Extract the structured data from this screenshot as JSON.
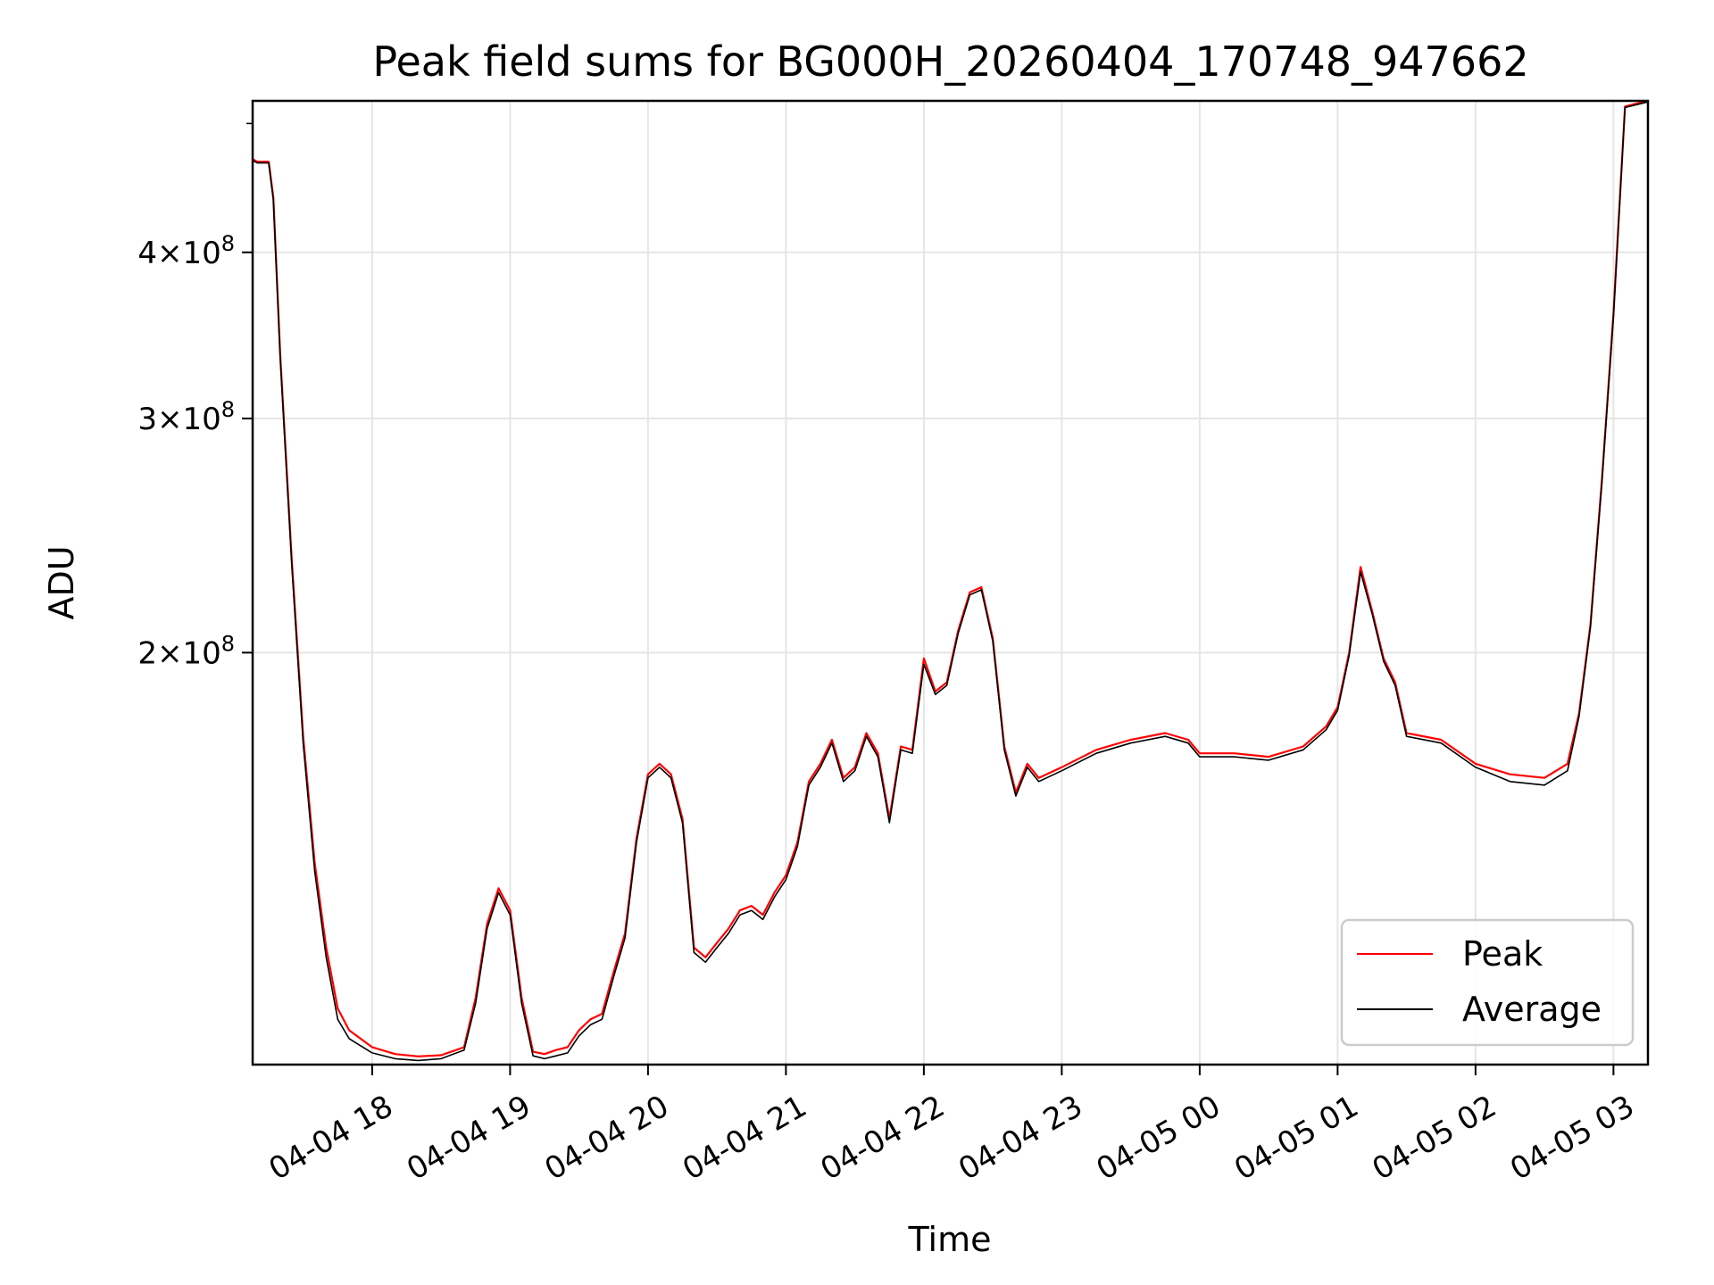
{
  "chart_data": {
    "type": "line",
    "title": "Peak field sums for BG000H_20260404_170748_947662",
    "xlabel": "Time",
    "ylabel": "ADU",
    "y_scale": "log",
    "grid": true,
    "legend_position": "lower-right",
    "x_range": [
      "2026-04-04 17:08",
      "2026-04-05 03:15"
    ],
    "y_range": [
      98000000,
      520000000
    ],
    "x_ticks": [
      {
        "value": "2026-04-04 18:00",
        "label": "04-04 18"
      },
      {
        "value": "2026-04-04 19:00",
        "label": "04-04 19"
      },
      {
        "value": "2026-04-04 20:00",
        "label": "04-04 20"
      },
      {
        "value": "2026-04-04 21:00",
        "label": "04-04 21"
      },
      {
        "value": "2026-04-04 22:00",
        "label": "04-04 22"
      },
      {
        "value": "2026-04-04 23:00",
        "label": "04-04 23"
      },
      {
        "value": "2026-04-05 00:00",
        "label": "04-05 00"
      },
      {
        "value": "2026-04-05 01:00",
        "label": "04-05 01"
      },
      {
        "value": "2026-04-05 02:00",
        "label": "04-05 02"
      },
      {
        "value": "2026-04-05 03:00",
        "label": "04-05 03"
      }
    ],
    "y_ticks": [
      {
        "value": 200000000,
        "mantissa": "2",
        "exponent": "8"
      },
      {
        "value": 300000000,
        "mantissa": "3",
        "exponent": "8"
      },
      {
        "value": 400000000,
        "mantissa": "4",
        "exponent": "8"
      }
    ],
    "y_minor_ticks": [
      500000000
    ],
    "series": [
      {
        "name": "Peak",
        "color": "#ff0000",
        "points": [
          [
            "2026-04-04 17:08",
            470000000
          ],
          [
            "2026-04-04 17:10",
            468000000
          ],
          [
            "2026-04-04 17:15",
            468000000
          ],
          [
            "2026-04-04 17:17",
            440000000
          ],
          [
            "2026-04-04 17:20",
            335000000
          ],
          [
            "2026-04-04 17:25",
            235000000
          ],
          [
            "2026-04-04 17:30",
            173000000
          ],
          [
            "2026-04-04 17:35",
            139000000
          ],
          [
            "2026-04-04 17:40",
            120000000
          ],
          [
            "2026-04-04 17:45",
            108000000
          ],
          [
            "2026-04-04 17:50",
            104000000
          ],
          [
            "2026-04-04 18:00",
            101000000
          ],
          [
            "2026-04-04 18:10",
            99800000
          ],
          [
            "2026-04-04 18:20",
            99400000
          ],
          [
            "2026-04-04 18:30",
            99600000
          ],
          [
            "2026-04-04 18:40",
            101000000
          ],
          [
            "2026-04-04 18:45",
            110000000
          ],
          [
            "2026-04-04 18:50",
            125000000
          ],
          [
            "2026-04-04 18:55",
            133000000
          ],
          [
            "2026-04-04 19:00",
            128000000
          ],
          [
            "2026-04-04 19:05",
            110000000
          ],
          [
            "2026-04-04 19:10",
            100200000
          ],
          [
            "2026-04-04 19:15",
            99800000
          ],
          [
            "2026-04-04 19:20",
            100500000
          ],
          [
            "2026-04-04 19:25",
            101000000
          ],
          [
            "2026-04-04 19:30",
            104000000
          ],
          [
            "2026-04-04 19:35",
            106000000
          ],
          [
            "2026-04-04 19:40",
            107000000
          ],
          [
            "2026-04-04 19:45",
            115000000
          ],
          [
            "2026-04-04 19:50",
            123000000
          ],
          [
            "2026-04-04 19:55",
            145000000
          ],
          [
            "2026-04-04 20:00",
            162000000
          ],
          [
            "2026-04-04 20:05",
            165000000
          ],
          [
            "2026-04-04 20:10",
            162000000
          ],
          [
            "2026-04-04 20:15",
            150000000
          ],
          [
            "2026-04-04 20:20",
            120000000
          ],
          [
            "2026-04-04 20:25",
            118000000
          ],
          [
            "2026-04-04 20:30",
            121000000
          ],
          [
            "2026-04-04 20:35",
            124000000
          ],
          [
            "2026-04-04 20:40",
            128000000
          ],
          [
            "2026-04-04 20:45",
            129000000
          ],
          [
            "2026-04-04 20:50",
            127000000
          ],
          [
            "2026-04-04 20:55",
            132000000
          ],
          [
            "2026-04-04 21:00",
            136000000
          ],
          [
            "2026-04-04 21:05",
            144000000
          ],
          [
            "2026-04-04 21:10",
            160000000
          ],
          [
            "2026-04-04 21:15",
            165000000
          ],
          [
            "2026-04-04 21:20",
            172000000
          ],
          [
            "2026-04-04 21:25",
            161000000
          ],
          [
            "2026-04-04 21:30",
            164000000
          ],
          [
            "2026-04-04 21:35",
            174000000
          ],
          [
            "2026-04-04 21:40",
            168000000
          ],
          [
            "2026-04-04 21:45",
            150000000
          ],
          [
            "2026-04-04 21:50",
            170000000
          ],
          [
            "2026-04-04 21:55",
            169000000
          ],
          [
            "2026-04-04 22:00",
            198000000
          ],
          [
            "2026-04-04 22:05",
            187000000
          ],
          [
            "2026-04-04 22:10",
            190000000
          ],
          [
            "2026-04-04 22:15",
            208000000
          ],
          [
            "2026-04-04 22:20",
            222000000
          ],
          [
            "2026-04-04 22:25",
            224000000
          ],
          [
            "2026-04-04 22:30",
            205000000
          ],
          [
            "2026-04-04 22:35",
            170000000
          ],
          [
            "2026-04-04 22:40",
            157000000
          ],
          [
            "2026-04-04 22:45",
            165000000
          ],
          [
            "2026-04-04 22:50",
            161000000
          ],
          [
            "2026-04-04 23:00",
            164000000
          ],
          [
            "2026-04-04 23:15",
            169000000
          ],
          [
            "2026-04-04 23:30",
            172000000
          ],
          [
            "2026-04-04 23:45",
            174000000
          ],
          [
            "2026-04-04 23:55",
            172000000
          ],
          [
            "2026-04-05 00:00",
            168000000
          ],
          [
            "2026-04-05 00:15",
            168000000
          ],
          [
            "2026-04-05 00:30",
            167000000
          ],
          [
            "2026-04-05 00:45",
            170000000
          ],
          [
            "2026-04-05 00:55",
            176000000
          ],
          [
            "2026-04-05 01:00",
            182000000
          ],
          [
            "2026-04-05 01:05",
            200000000
          ],
          [
            "2026-04-05 01:10",
            232000000
          ],
          [
            "2026-04-05 01:15",
            215000000
          ],
          [
            "2026-04-05 01:20",
            198000000
          ],
          [
            "2026-04-05 01:25",
            190000000
          ],
          [
            "2026-04-05 01:30",
            174000000
          ],
          [
            "2026-04-05 01:45",
            172000000
          ],
          [
            "2026-04-05 02:00",
            165000000
          ],
          [
            "2026-04-05 02:15",
            162000000
          ],
          [
            "2026-04-05 02:30",
            161000000
          ],
          [
            "2026-04-05 02:40",
            165000000
          ],
          [
            "2026-04-05 02:45",
            180000000
          ],
          [
            "2026-04-05 02:50",
            210000000
          ],
          [
            "2026-04-05 02:55",
            270000000
          ],
          [
            "2026-04-05 03:00",
            360000000
          ],
          [
            "2026-04-05 03:05",
            515000000
          ],
          [
            "2026-04-05 03:15",
            520000000
          ]
        ]
      },
      {
        "name": "Average",
        "color": "#000000",
        "points": [
          [
            "2026-04-04 17:08",
            469000000
          ],
          [
            "2026-04-04 17:10",
            467000000
          ],
          [
            "2026-04-04 17:15",
            467000000
          ],
          [
            "2026-04-04 17:17",
            438000000
          ],
          [
            "2026-04-04 17:20",
            333000000
          ],
          [
            "2026-04-04 17:25",
            233000000
          ],
          [
            "2026-04-04 17:30",
            171000000
          ],
          [
            "2026-04-04 17:35",
            137000000
          ],
          [
            "2026-04-04 17:40",
            118000000
          ],
          [
            "2026-04-04 17:45",
            106000000
          ],
          [
            "2026-04-04 17:50",
            102500000
          ],
          [
            "2026-04-04 18:00",
            100000000
          ],
          [
            "2026-04-04 18:10",
            99000000
          ],
          [
            "2026-04-04 18:20",
            98700000
          ],
          [
            "2026-04-04 18:30",
            99000000
          ],
          [
            "2026-04-04 18:40",
            100500000
          ],
          [
            "2026-04-04 18:45",
            109000000
          ],
          [
            "2026-04-04 18:50",
            124000000
          ],
          [
            "2026-04-04 18:55",
            132000000
          ],
          [
            "2026-04-04 19:00",
            127000000
          ],
          [
            "2026-04-04 19:05",
            109000000
          ],
          [
            "2026-04-04 19:10",
            99500000
          ],
          [
            "2026-04-04 19:15",
            99000000
          ],
          [
            "2026-04-04 19:20",
            99500000
          ],
          [
            "2026-04-04 19:25",
            100000000
          ],
          [
            "2026-04-04 19:30",
            103000000
          ],
          [
            "2026-04-04 19:35",
            105000000
          ],
          [
            "2026-04-04 19:40",
            106000000
          ],
          [
            "2026-04-04 19:45",
            114000000
          ],
          [
            "2026-04-04 19:50",
            122000000
          ],
          [
            "2026-04-04 19:55",
            144000000
          ],
          [
            "2026-04-04 20:00",
            161000000
          ],
          [
            "2026-04-04 20:05",
            164000000
          ],
          [
            "2026-04-04 20:10",
            161000000
          ],
          [
            "2026-04-04 20:15",
            149000000
          ],
          [
            "2026-04-04 20:20",
            119000000
          ],
          [
            "2026-04-04 20:25",
            117000000
          ],
          [
            "2026-04-04 20:30",
            120000000
          ],
          [
            "2026-04-04 20:35",
            123000000
          ],
          [
            "2026-04-04 20:40",
            127000000
          ],
          [
            "2026-04-04 20:45",
            128000000
          ],
          [
            "2026-04-04 20:50",
            126000000
          ],
          [
            "2026-04-04 20:55",
            131000000
          ],
          [
            "2026-04-04 21:00",
            135000000
          ],
          [
            "2026-04-04 21:05",
            143000000
          ],
          [
            "2026-04-04 21:10",
            159000000
          ],
          [
            "2026-04-04 21:15",
            164000000
          ],
          [
            "2026-04-04 21:20",
            171000000
          ],
          [
            "2026-04-04 21:25",
            160000000
          ],
          [
            "2026-04-04 21:30",
            163000000
          ],
          [
            "2026-04-04 21:35",
            173000000
          ],
          [
            "2026-04-04 21:40",
            167000000
          ],
          [
            "2026-04-04 21:45",
            149000000
          ],
          [
            "2026-04-04 21:50",
            169000000
          ],
          [
            "2026-04-04 21:55",
            168000000
          ],
          [
            "2026-04-04 22:00",
            196000000
          ],
          [
            "2026-04-04 22:05",
            186000000
          ],
          [
            "2026-04-04 22:10",
            189000000
          ],
          [
            "2026-04-04 22:15",
            207000000
          ],
          [
            "2026-04-04 22:20",
            221000000
          ],
          [
            "2026-04-04 22:25",
            223000000
          ],
          [
            "2026-04-04 22:30",
            204000000
          ],
          [
            "2026-04-04 22:35",
            169000000
          ],
          [
            "2026-04-04 22:40",
            156000000
          ],
          [
            "2026-04-04 22:45",
            164000000
          ],
          [
            "2026-04-04 22:50",
            160000000
          ],
          [
            "2026-04-04 23:00",
            163000000
          ],
          [
            "2026-04-04 23:15",
            168000000
          ],
          [
            "2026-04-04 23:30",
            171000000
          ],
          [
            "2026-04-04 23:45",
            173000000
          ],
          [
            "2026-04-04 23:55",
            171000000
          ],
          [
            "2026-04-05 00:00",
            167000000
          ],
          [
            "2026-04-05 00:15",
            167000000
          ],
          [
            "2026-04-05 00:30",
            166000000
          ],
          [
            "2026-04-05 00:45",
            169000000
          ],
          [
            "2026-04-05 00:55",
            175000000
          ],
          [
            "2026-04-05 01:00",
            181000000
          ],
          [
            "2026-04-05 01:05",
            199000000
          ],
          [
            "2026-04-05 01:10",
            230000000
          ],
          [
            "2026-04-05 01:15",
            214000000
          ],
          [
            "2026-04-05 01:20",
            197000000
          ],
          [
            "2026-04-05 01:25",
            189000000
          ],
          [
            "2026-04-05 01:30",
            173000000
          ],
          [
            "2026-04-05 01:45",
            171000000
          ],
          [
            "2026-04-05 02:00",
            164000000
          ],
          [
            "2026-04-05 02:15",
            160000000
          ],
          [
            "2026-04-05 02:30",
            159000000
          ],
          [
            "2026-04-05 02:40",
            163000000
          ],
          [
            "2026-04-05 02:45",
            179000000
          ],
          [
            "2026-04-05 02:50",
            209000000
          ],
          [
            "2026-04-05 02:55",
            269000000
          ],
          [
            "2026-04-05 03:00",
            358000000
          ],
          [
            "2026-04-05 03:05",
            514000000
          ],
          [
            "2026-04-05 03:15",
            519000000
          ]
        ]
      }
    ]
  }
}
